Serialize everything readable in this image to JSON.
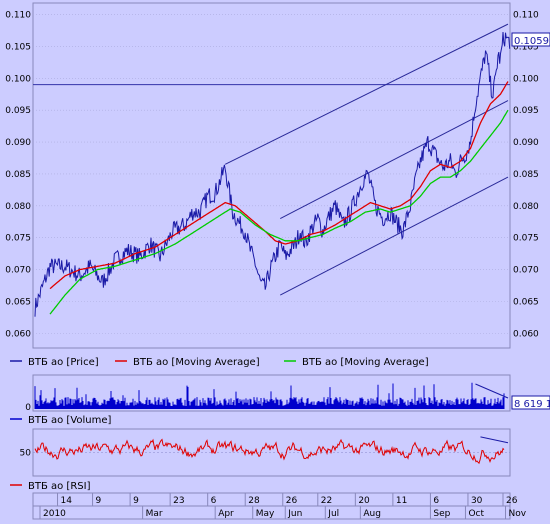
{
  "chart_data": [
    {
      "type": "line",
      "panel": "price",
      "series": [
        {
          "name": "ВТБ ао [Price]",
          "color": "#1a1aa6",
          "anchors": [
            [
              0,
              0.064
            ],
            [
              6,
              0.0705
            ],
            [
              12,
              0.0705
            ],
            [
              14,
              0.07
            ],
            [
              18,
              0.069
            ],
            [
              22,
              0.0705
            ],
            [
              27,
              0.068
            ],
            [
              32,
              0.0715
            ],
            [
              37,
              0.073
            ],
            [
              42,
              0.072
            ],
            [
              46,
              0.074
            ],
            [
              50,
              0.072
            ],
            [
              55,
              0.076
            ],
            [
              60,
              0.077
            ],
            [
              63,
              0.079
            ],
            [
              66,
              0.079
            ],
            [
              69,
              0.0815
            ],
            [
              72,
              0.082
            ],
            [
              74,
              0.084
            ],
            [
              76,
              0.086
            ],
            [
              79,
              0.079
            ],
            [
              82,
              0.077
            ],
            [
              84,
              0.076
            ],
            [
              86,
              0.073
            ],
            [
              88,
              0.071
            ],
            [
              90,
              0.068
            ],
            [
              92,
              0.067
            ],
            [
              94,
              0.07
            ],
            [
              96,
              0.072
            ],
            [
              98,
              0.074
            ],
            [
              100,
              0.072
            ],
            [
              102,
              0.073
            ],
            [
              104,
              0.074
            ],
            [
              106,
              0.076
            ],
            [
              108,
              0.074
            ],
            [
              110,
              0.076
            ],
            [
              113,
              0.078
            ],
            [
              115,
              0.076
            ],
            [
              117,
              0.078
            ],
            [
              120,
              0.08
            ],
            [
              123,
              0.077
            ],
            [
              126,
              0.079
            ],
            [
              129,
              0.082
            ],
            [
              131,
              0.084
            ],
            [
              133,
              0.085
            ],
            [
              136,
              0.08
            ],
            [
              139,
              0.078
            ],
            [
              142,
              0.079
            ],
            [
              145,
              0.077
            ],
            [
              147,
              0.076
            ],
            [
              150,
              0.08
            ],
            [
              152,
              0.084
            ],
            [
              154,
              0.087
            ],
            [
              157,
              0.09
            ],
            [
              160,
              0.088
            ],
            [
              163,
              0.086
            ],
            [
              166,
              0.087
            ],
            [
              168,
              0.085
            ],
            [
              170,
              0.087
            ],
            [
              172,
              0.088
            ],
            [
              174,
              0.09
            ],
            [
              176,
              0.096
            ],
            [
              178,
              0.1
            ],
            [
              180,
              0.104
            ],
            [
              181,
              0.102
            ],
            [
              182,
              0.099
            ],
            [
              183,
              0.0975
            ],
            [
              184,
              0.1
            ],
            [
              185,
              0.1035
            ],
            [
              186,
              0.103
            ],
            [
              187,
              0.106
            ],
            [
              188,
              0.1065
            ],
            [
              189,
              0.1059
            ]
          ]
        },
        {
          "name": "ВТБ ао [Moving Average]",
          "color": "#e00000",
          "anchors": [
            [
              6,
              0.067
            ],
            [
              12,
              0.069
            ],
            [
              18,
              0.07
            ],
            [
              25,
              0.0705
            ],
            [
              32,
              0.071
            ],
            [
              40,
              0.0725
            ],
            [
              48,
              0.0735
            ],
            [
              56,
              0.0755
            ],
            [
              64,
              0.0775
            ],
            [
              70,
              0.079
            ],
            [
              76,
              0.0805
            ],
            [
              80,
              0.08
            ],
            [
              86,
              0.078
            ],
            [
              92,
              0.076
            ],
            [
              96,
              0.0745
            ],
            [
              100,
              0.074
            ],
            [
              105,
              0.0745
            ],
            [
              110,
              0.0755
            ],
            [
              115,
              0.076
            ],
            [
              120,
              0.077
            ],
            [
              126,
              0.0785
            ],
            [
              130,
              0.0795
            ],
            [
              134,
              0.0805
            ],
            [
              138,
              0.08
            ],
            [
              142,
              0.0795
            ],
            [
              146,
              0.08
            ],
            [
              150,
              0.081
            ],
            [
              154,
              0.083
            ],
            [
              158,
              0.0855
            ],
            [
              162,
              0.0865
            ],
            [
              166,
              0.086
            ],
            [
              170,
              0.087
            ],
            [
              174,
              0.089
            ],
            [
              178,
              0.093
            ],
            [
              182,
              0.096
            ],
            [
              186,
              0.0975
            ],
            [
              189,
              0.0995
            ]
          ]
        },
        {
          "name": "ВТБ ао [Moving Average]",
          "color": "#00cc00",
          "anchors": [
            [
              6,
              0.063
            ],
            [
              12,
              0.066
            ],
            [
              18,
              0.0685
            ],
            [
              25,
              0.07
            ],
            [
              32,
              0.0705
            ],
            [
              40,
              0.0715
            ],
            [
              48,
              0.0725
            ],
            [
              56,
              0.074
            ],
            [
              64,
              0.076
            ],
            [
              72,
              0.078
            ],
            [
              78,
              0.0795
            ],
            [
              82,
              0.079
            ],
            [
              88,
              0.077
            ],
            [
              94,
              0.0755
            ],
            [
              100,
              0.0745
            ],
            [
              105,
              0.0745
            ],
            [
              110,
              0.075
            ],
            [
              115,
              0.0755
            ],
            [
              120,
              0.0765
            ],
            [
              126,
              0.0775
            ],
            [
              132,
              0.079
            ],
            [
              138,
              0.0795
            ],
            [
              142,
              0.079
            ],
            [
              146,
              0.0795
            ],
            [
              150,
              0.08
            ],
            [
              154,
              0.0815
            ],
            [
              158,
              0.0835
            ],
            [
              162,
              0.0845
            ],
            [
              166,
              0.0845
            ],
            [
              170,
              0.0855
            ],
            [
              174,
              0.087
            ],
            [
              178,
              0.089
            ],
            [
              182,
              0.091
            ],
            [
              186,
              0.093
            ],
            [
              189,
              0.095
            ]
          ]
        }
      ],
      "channel": [
        {
          "from": [
            76,
            0.0865
          ],
          "to": [
            189,
            0.1085
          ]
        },
        {
          "from": [
            98,
            0.078
          ],
          "to": [
            189,
            0.0965
          ]
        },
        {
          "from": [
            98,
            0.066
          ],
          "to": [
            189,
            0.0845
          ]
        }
      ],
      "hline": 0.099,
      "last_value": "0.1059",
      "ylim": [
        0.058,
        0.1115
      ],
      "yticks": [
        "0.060",
        "0.065",
        "0.070",
        "0.075",
        "0.080",
        "0.085",
        "0.090",
        "0.095",
        "0.100",
        "0.105",
        "0.110"
      ],
      "grid": true,
      "legend_position": "bottom"
    },
    {
      "type": "bar",
      "panel": "volume",
      "series": [
        {
          "name": "ВТБ ао [Volume]",
          "color": "#0000cc"
        }
      ],
      "ylim": [
        0,
        10
      ],
      "yticks": [
        "0"
      ],
      "last_value": "8 619 1",
      "legend_position": "bottom"
    },
    {
      "type": "line",
      "panel": "rsi",
      "series": [
        {
          "name": "ВТБ ао [RSI]",
          "color": "#e00000"
        }
      ],
      "ylim": [
        28,
        72
      ],
      "yticks": [
        "50"
      ],
      "legend_position": "bottom"
    }
  ],
  "xaxis": {
    "top_labels": [
      {
        "d": 9,
        "t": "14"
      },
      {
        "d": 23,
        "t": "9"
      },
      {
        "d": 38,
        "t": "9"
      },
      {
        "d": 54,
        "t": "23"
      },
      {
        "d": 69,
        "t": "6"
      },
      {
        "d": 84,
        "t": "28"
      },
      {
        "d": 99,
        "t": "26"
      },
      {
        "d": 113,
        "t": "22"
      },
      {
        "d": 128,
        "t": "20"
      },
      {
        "d": 143,
        "t": "11"
      },
      {
        "d": 158,
        "t": "6"
      },
      {
        "d": 173,
        "t": "30"
      },
      {
        "d": 187,
        "t": "26"
      }
    ],
    "bottom_labels": [
      {
        "d": 2,
        "t": "2010"
      },
      {
        "d": 43,
        "t": "Mar"
      },
      {
        "d": 72,
        "t": "Apr"
      },
      {
        "d": 87,
        "t": "May"
      },
      {
        "d": 100,
        "t": "Jun"
      },
      {
        "d": 116,
        "t": "Jul"
      },
      {
        "d": 130,
        "t": "Aug"
      },
      {
        "d": 158,
        "t": "Sep"
      },
      {
        "d": 172,
        "t": "Oct"
      },
      {
        "d": 188,
        "t": "Nov"
      }
    ]
  }
}
